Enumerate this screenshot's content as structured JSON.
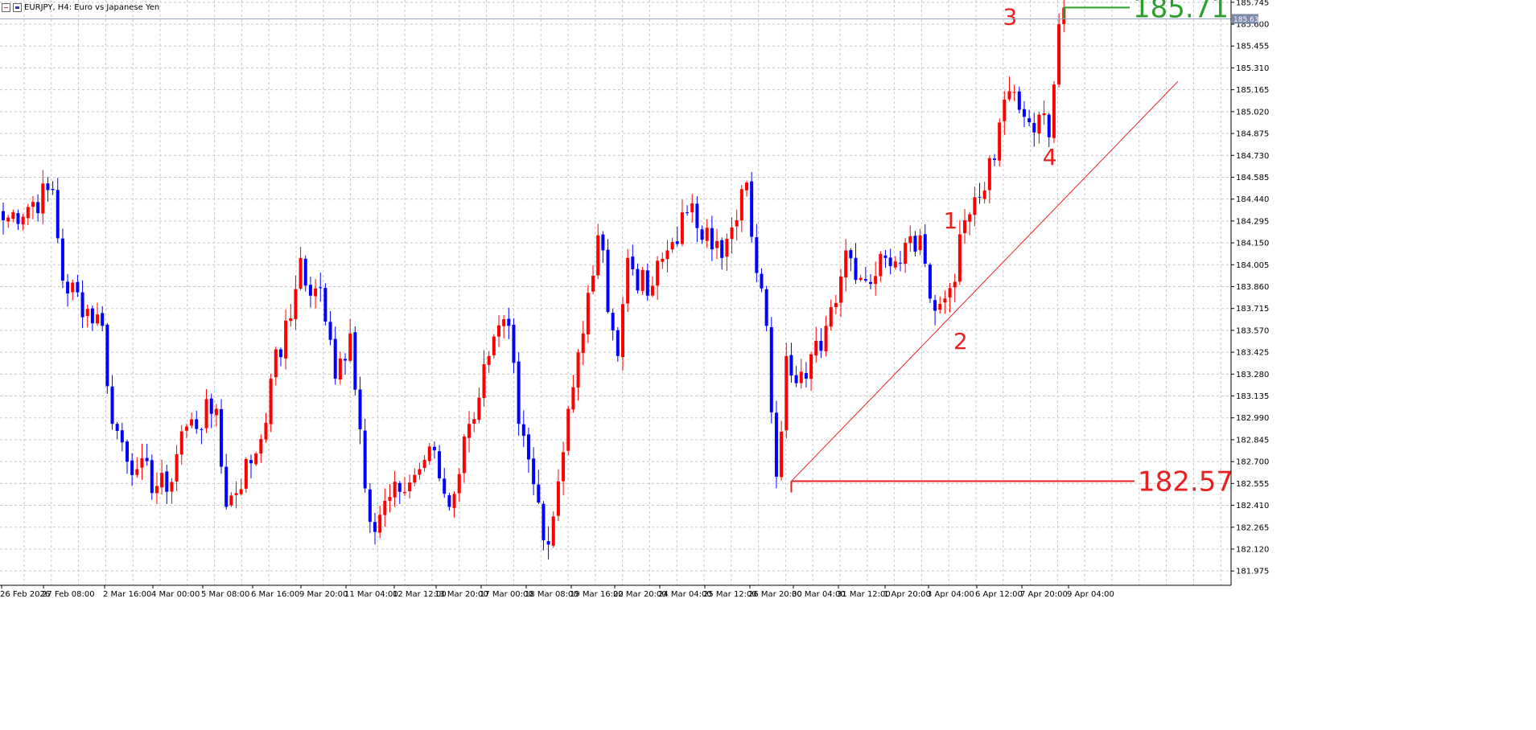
{
  "header": {
    "title": "EURJPY, H4:  Euro vs Japanese Yen",
    "icons": [
      "chart-icon",
      "indicator-icon"
    ]
  },
  "colors": {
    "bull": "#ff0000",
    "bear": "#0000ff",
    "grid": "#c8c8c8",
    "green_line": "#2ca02c",
    "red_line": "#e82020",
    "current_price_bg": "#7a8aa8"
  },
  "chart_data": {
    "type": "candlestick",
    "symbol": "EURJPY",
    "timeframe": "H4",
    "current_price_label": "185.635",
    "y_ticks": [
      "185.745",
      "185.600",
      "185.455",
      "185.310",
      "185.165",
      "185.020",
      "184.875",
      "184.730",
      "184.585",
      "184.440",
      "184.295",
      "184.150",
      "184.005",
      "183.860",
      "183.715",
      "183.570",
      "183.425",
      "183.280",
      "183.135",
      "182.990",
      "182.845",
      "182.700",
      "182.555",
      "182.410",
      "182.265",
      "182.120",
      "181.975"
    ],
    "y_range": [
      181.88,
      185.76
    ],
    "x_tick_labels": [
      "26 Feb 2026",
      "27 Feb 08:00",
      "2 Mar 16:00",
      "4 Mar 00:00",
      "5 Mar 08:00",
      "6 Mar 16:00",
      "9 Mar 20:00",
      "11 Mar 04:00",
      "12 Mar 12:00",
      "13 Mar 20:00",
      "17 Mar 00:00",
      "18 Mar 08:00",
      "19 Mar 16:00",
      "22 Mar 20:00",
      "24 Mar 04:00",
      "25 Mar 12:00",
      "26 Mar 20:00",
      "30 Mar 04:00",
      "31 Mar 12:00",
      "1 Apr 20:00",
      "3 Apr 04:00",
      "6 Apr 12:00",
      "7 Apr 20:00",
      "9 Apr 04:00"
    ],
    "grid": true,
    "anchors": [
      {
        "index": 0,
        "close": 184.3
      },
      {
        "index": 10,
        "close": 184.5
      },
      {
        "index": 12,
        "close": 183.9
      },
      {
        "index": 20,
        "close": 183.6
      },
      {
        "index": 22,
        "close": 182.95
      },
      {
        "index": 27,
        "close": 182.65
      },
      {
        "index": 33,
        "close": 182.5
      },
      {
        "index": 36,
        "close": 182.9
      },
      {
        "index": 43,
        "close": 183.05
      },
      {
        "index": 45,
        "close": 182.4
      },
      {
        "index": 52,
        "close": 182.85
      },
      {
        "index": 54,
        "close": 183.25
      },
      {
        "index": 58,
        "close": 183.65
      },
      {
        "index": 60,
        "close": 184.05
      },
      {
        "index": 62,
        "close": 183.8
      },
      {
        "index": 64,
        "close": 183.85
      },
      {
        "index": 67,
        "close": 183.25
      },
      {
        "index": 70,
        "close": 183.55
      },
      {
        "index": 74,
        "close": 182.3
      },
      {
        "index": 80,
        "close": 182.5
      },
      {
        "index": 84,
        "close": 182.65
      },
      {
        "index": 86,
        "close": 182.8
      },
      {
        "index": 90,
        "close": 182.4
      },
      {
        "index": 94,
        "close": 182.95
      },
      {
        "index": 98,
        "close": 183.4
      },
      {
        "index": 102,
        "close": 183.6
      },
      {
        "index": 104,
        "close": 182.95
      },
      {
        "index": 107,
        "close": 182.55
      },
      {
        "index": 110,
        "close": 182.15
      },
      {
        "index": 114,
        "close": 183.05
      },
      {
        "index": 117,
        "close": 183.55
      },
      {
        "index": 120,
        "close": 184.2
      },
      {
        "index": 124,
        "close": 183.4
      },
      {
        "index": 126,
        "close": 184.05
      },
      {
        "index": 130,
        "close": 183.8
      },
      {
        "index": 134,
        "close": 184.1
      },
      {
        "index": 138,
        "close": 184.35
      },
      {
        "index": 142,
        "close": 184.25
      },
      {
        "index": 145,
        "close": 184.05
      },
      {
        "index": 148,
        "close": 184.3
      },
      {
        "index": 150,
        "close": 184.55
      },
      {
        "index": 152,
        "close": 183.95
      },
      {
        "index": 154,
        "close": 183.6
      },
      {
        "index": 156,
        "close": 182.6
      },
      {
        "index": 158,
        "close": 183.4
      },
      {
        "index": 162,
        "close": 183.25
      },
      {
        "index": 166,
        "close": 183.6
      },
      {
        "index": 170,
        "close": 184.1
      },
      {
        "index": 174,
        "close": 183.9
      },
      {
        "index": 178,
        "close": 184.05
      },
      {
        "index": 182,
        "close": 184.15
      },
      {
        "index": 185,
        "close": 184.2
      },
      {
        "index": 188,
        "close": 183.7
      },
      {
        "index": 191,
        "close": 183.85
      },
      {
        "index": 194,
        "close": 184.3
      },
      {
        "index": 197,
        "close": 184.45
      },
      {
        "index": 200,
        "close": 184.7
      },
      {
        "index": 202,
        "close": 185.1
      },
      {
        "index": 204,
        "close": 185.15
      },
      {
        "index": 207,
        "close": 184.95
      },
      {
        "index": 209,
        "close": 185.0
      },
      {
        "index": 211,
        "close": 184.85
      },
      {
        "index": 212,
        "close": 185.2
      },
      {
        "index": 213,
        "close": 185.6
      },
      {
        "index": 214,
        "close": 185.71
      }
    ],
    "annotations": [
      {
        "label": "1",
        "x_index": 191,
        "price": 184.3
      },
      {
        "label": "2",
        "x_index": 193,
        "price": 183.5
      },
      {
        "label": "3",
        "x_index": 203,
        "price": 185.65
      },
      {
        "label": "4",
        "x_index": 211,
        "price": 184.72
      }
    ],
    "horizontal_lines": [
      {
        "label": "185.71",
        "price": 185.71,
        "from_index": 214,
        "color": "green"
      },
      {
        "label": "182.57",
        "price": 182.57,
        "from_index": 159,
        "color": "red"
      }
    ],
    "trendline": {
      "from_index": 159,
      "from_price": 182.57,
      "to_index": 237,
      "to_price": 185.22
    }
  }
}
